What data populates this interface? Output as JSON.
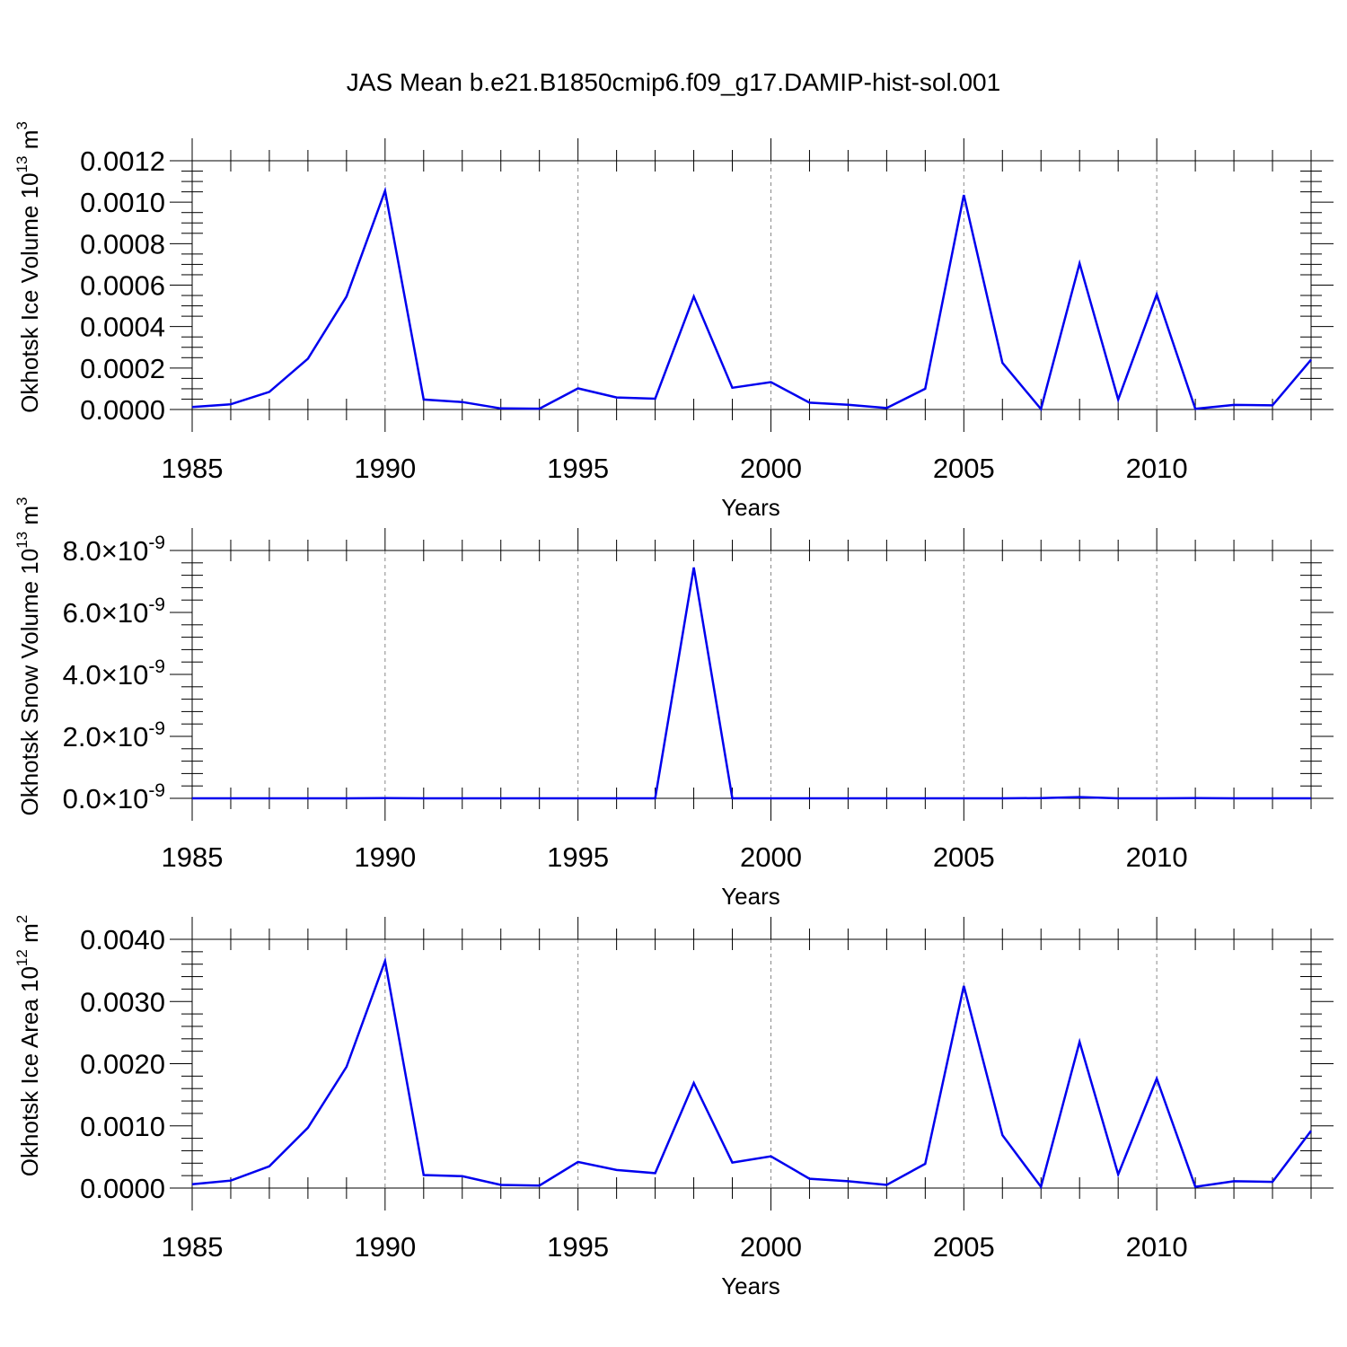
{
  "title": "JAS Mean b.e21.B1850cmip6.f09_g17.DAMIP-hist-sol.001",
  "colors": {
    "series": "#0000ee",
    "axis": "#000000",
    "grid": "#888888"
  },
  "chart_data": [
    {
      "type": "line",
      "ylabel": "Okhotsk Ice Volume 10",
      "ylabel_exp": "13",
      "ylabel_unit": " m",
      "ylabel_unit_exp": "3",
      "xlabel": "Years",
      "xlim": [
        1985,
        2014
      ],
      "ylim": [
        0,
        0.0012
      ],
      "xticks": [
        1985,
        1990,
        1995,
        2000,
        2005,
        2010
      ],
      "yticks": [
        "0.0000",
        "0.0002",
        "0.0004",
        "0.0006",
        "0.0008",
        "0.0010",
        "0.0012"
      ],
      "grid": "vertical dashed at major x ticks",
      "x": [
        1985,
        1986,
        1987,
        1988,
        1989,
        1990,
        1991,
        1992,
        1993,
        1994,
        1995,
        1996,
        1997,
        1998,
        1999,
        2000,
        2001,
        2002,
        2003,
        2004,
        2005,
        2006,
        2007,
        2008,
        2009,
        2010,
        2011,
        2012,
        2013,
        2014
      ],
      "series": [
        {
          "values": [
            1.2e-05,
            2.5e-05,
            8.5e-05,
            0.000245,
            0.000545,
            0.001055,
            4.8e-05,
            3.6e-05,
            5e-06,
            4e-06,
            0.000102,
            5.8e-05,
            5.2e-05,
            0.000545,
            0.000105,
            0.000132,
            3.3e-05,
            2.3e-05,
            7e-06,
            0.0001,
            0.001035,
            0.000225,
            2e-06,
            0.000705,
            4.8e-05,
            0.000555,
            3e-06,
            2.2e-05,
            2e-05,
            0.00024
          ]
        }
      ]
    },
    {
      "type": "line",
      "ylabel": "Okhotsk Snow Volume 10",
      "ylabel_exp": "13",
      "ylabel_unit": " m",
      "ylabel_unit_exp": "3",
      "xlabel": "Years",
      "xlim": [
        1985,
        2014
      ],
      "ylim": [
        0,
        8e-09
      ],
      "xticks": [
        1985,
        1990,
        1995,
        2000,
        2005,
        2010
      ],
      "yticks": [
        "0.0",
        "2.0",
        "4.0",
        "6.0",
        "8.0"
      ],
      "ytick_suffix": "×10",
      "ytick_exp": "-9",
      "grid": "vertical dashed at major x ticks",
      "x": [
        1985,
        1986,
        1987,
        1988,
        1989,
        1990,
        1991,
        1992,
        1993,
        1994,
        1995,
        1996,
        1997,
        1998,
        1999,
        2000,
        2001,
        2002,
        2003,
        2004,
        2005,
        2006,
        2007,
        2008,
        2009,
        2010,
        2011,
        2012,
        2013,
        2014
      ],
      "series": [
        {
          "values": [
            0,
            0,
            0,
            0,
            0,
            1e-11,
            0,
            0,
            0,
            0,
            0,
            0,
            0,
            7.45e-09,
            0,
            0,
            0,
            0,
            0,
            0,
            0,
            0,
            1e-11,
            4e-11,
            0,
            0,
            1e-11,
            0,
            0,
            0
          ]
        }
      ]
    },
    {
      "type": "line",
      "ylabel": "Okhotsk Ice Area 10",
      "ylabel_exp": "12",
      "ylabel_unit": " m",
      "ylabel_unit_exp": "2",
      "xlabel": "Years",
      "xlim": [
        1985,
        2014
      ],
      "ylim": [
        0,
        0.004
      ],
      "xticks": [
        1985,
        1990,
        1995,
        2000,
        2005,
        2010
      ],
      "yticks": [
        "0.0000",
        "0.0010",
        "0.0020",
        "0.0030",
        "0.0040"
      ],
      "grid": "vertical dashed at major x ticks",
      "x": [
        1985,
        1986,
        1987,
        1988,
        1989,
        1990,
        1991,
        1992,
        1993,
        1994,
        1995,
        1996,
        1997,
        1998,
        1999,
        2000,
        2001,
        2002,
        2003,
        2004,
        2005,
        2006,
        2007,
        2008,
        2009,
        2010,
        2011,
        2012,
        2013,
        2014
      ],
      "series": [
        {
          "values": [
            6e-05,
            0.00012,
            0.00035,
            0.00097,
            0.00195,
            0.00365,
            0.00021,
            0.00019,
            5e-05,
            4e-05,
            0.00042,
            0.00029,
            0.00024,
            0.00169,
            0.00041,
            0.00051,
            0.00015,
            0.00011,
            5e-05,
            0.00039,
            0.00325,
            0.00085,
            2e-05,
            0.00235,
            0.00022,
            0.00176,
            2e-05,
            0.00011,
            0.0001,
            0.00092
          ]
        }
      ]
    }
  ]
}
